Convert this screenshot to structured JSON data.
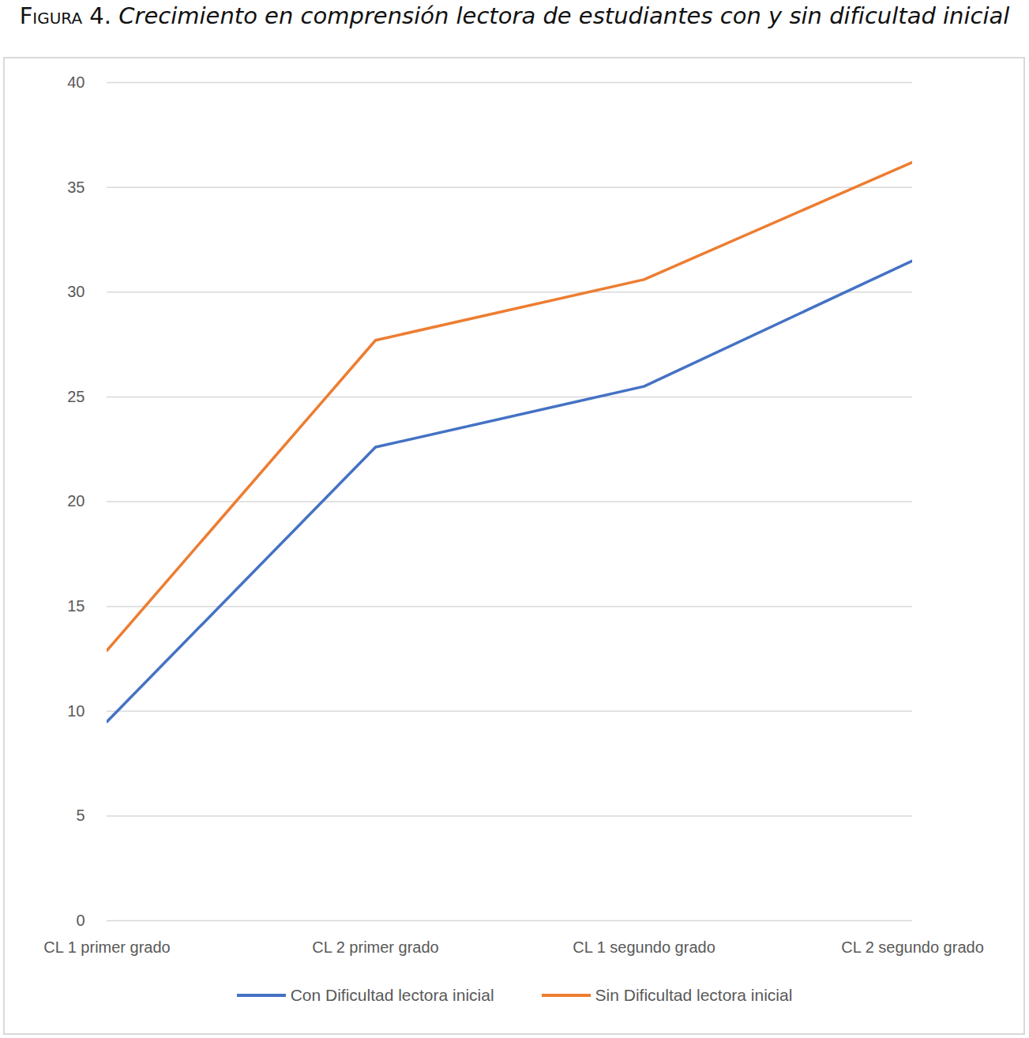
{
  "chart_data": {
    "type": "line",
    "title": "Figura 4. Crecimiento en comprensión lectora de estudiantes con y sin dificultad inicial",
    "categories": [
      "CL 1 primer grado",
      "CL 2 primer grado",
      "CL 1 segundo grado",
      "CL 2 segundo grado"
    ],
    "series": [
      {
        "name": "Con Dificultad lectora inicial",
        "color": "#4472c4",
        "values": [
          9.5,
          22.6,
          25.5,
          31.5
        ]
      },
      {
        "name": "Sin Dificultad lectora inicial",
        "color": "#ed7d31",
        "values": [
          12.9,
          27.7,
          30.6,
          36.2
        ]
      }
    ],
    "ylim": [
      0,
      40
    ],
    "yticks": [
      0,
      5,
      10,
      15,
      20,
      25,
      30,
      35,
      40
    ],
    "grid": true,
    "legend": "bottom"
  }
}
